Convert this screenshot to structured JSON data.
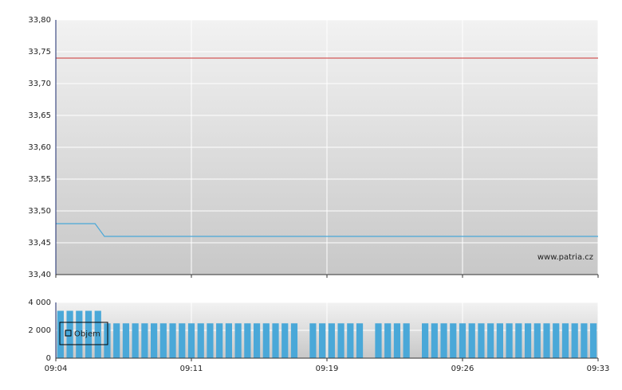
{
  "chart_data": [
    {
      "type": "line",
      "xlim": [
        544,
        573
      ],
      "xticks": [
        544,
        551.25,
        558.5,
        565.75,
        573
      ],
      "ylim": [
        33.4,
        33.8
      ],
      "yticks": [
        {
          "value": 33.4,
          "label": "33,40"
        },
        {
          "value": 33.45,
          "label": "33,45"
        },
        {
          "value": 33.5,
          "label": "33,50"
        },
        {
          "value": 33.55,
          "label": "33,55"
        },
        {
          "value": 33.6,
          "label": "33,60"
        },
        {
          "value": 33.65,
          "label": "33,65"
        },
        {
          "value": 33.7,
          "label": "33,70"
        },
        {
          "value": 33.75,
          "label": "33,75"
        },
        {
          "value": 33.8,
          "label": "33,80"
        }
      ],
      "grid": true,
      "reference_lines": [
        {
          "value": 33.74,
          "color": "#cc3333"
        }
      ],
      "series": [
        {
          "color": "#4aa8d8",
          "x": [
            544,
            546.1,
            546.6,
            573
          ],
          "values": [
            33.48,
            33.48,
            33.46,
            33.46
          ]
        }
      ],
      "annotation": "www.patria.cz"
    },
    {
      "type": "bar",
      "xlim": [
        544,
        573
      ],
      "xticks": [
        {
          "value": 544,
          "label": "09:04"
        },
        {
          "value": 551.25,
          "label": "09:11"
        },
        {
          "value": 558.5,
          "label": "09:19"
        },
        {
          "value": 565.75,
          "label": "09:26"
        },
        {
          "value": 573,
          "label": "09:33"
        }
      ],
      "ylim": [
        0,
        4000
      ],
      "yticks": [
        0,
        {
          "value": 2000,
          "label": "2 000"
        },
        {
          "value": 4000,
          "label": "4 000"
        }
      ],
      "grid": true,
      "legend": "upper left",
      "series": [
        {
          "name": "Objem",
          "color": "#4aa8d8",
          "x": [
            544.25,
            544.75,
            545.25,
            545.75,
            546.25,
            546.75,
            547.25,
            547.75,
            548.25,
            548.75,
            549.25,
            549.75,
            550.25,
            550.75,
            551.25,
            551.75,
            552.25,
            552.75,
            553.25,
            553.75,
            554.25,
            554.75,
            555.25,
            555.75,
            556.25,
            556.75,
            557.75,
            558.25,
            558.75,
            559.25,
            559.75,
            560.25,
            561.25,
            561.75,
            562.25,
            562.75,
            563.75,
            564.25,
            564.75,
            565.25,
            565.75,
            566.25,
            566.75,
            567.25,
            567.75,
            568.25,
            568.75,
            569.25,
            569.75,
            570.25,
            570.75,
            571.25,
            571.75,
            572.25,
            572.75
          ],
          "values": [
            3400,
            3400,
            3400,
            3400,
            3400,
            2500,
            2500,
            2500,
            2500,
            2500,
            2500,
            2500,
            2500,
            2500,
            2500,
            2500,
            2500,
            2500,
            2500,
            2500,
            2500,
            2500,
            2500,
            2500,
            2500,
            2500,
            2500,
            2500,
            2500,
            2500,
            2500,
            2500,
            2500,
            2500,
            2500,
            2500,
            2500,
            2500,
            2500,
            2500,
            2500,
            2500,
            2500,
            2500,
            2500,
            2500,
            2500,
            2500,
            2500,
            2500,
            2500,
            2500,
            2500,
            2500,
            2500
          ]
        }
      ]
    }
  ]
}
